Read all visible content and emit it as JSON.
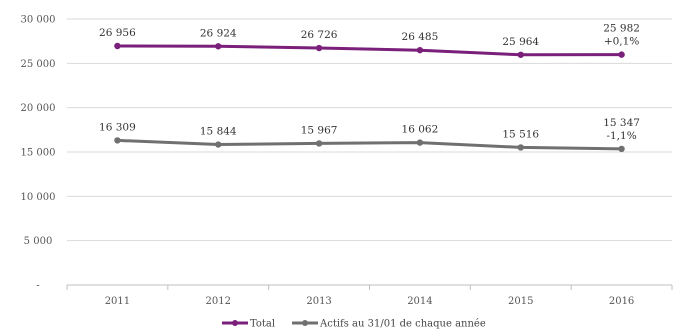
{
  "chart_data": {
    "type": "line",
    "categories": [
      "2011",
      "2012",
      "2013",
      "2014",
      "2015",
      "2016"
    ],
    "ylim": [
      0,
      30000
    ],
    "yticks": [
      0,
      5000,
      10000,
      15000,
      20000,
      25000,
      30000
    ],
    "ytick_labels": [
      "-",
      "5 000",
      "10 000",
      "15 000",
      "20 000",
      "25 000",
      "30 000"
    ],
    "grid": true,
    "legend_position": "bottom",
    "series": [
      {
        "name": "Total",
        "color": "#7a1f7a",
        "values": [
          26956,
          26924,
          26726,
          26485,
          25964,
          25982
        ],
        "labels": [
          "26 956",
          "26 924",
          "26 726",
          "26 485",
          "25 964",
          "25 982"
        ],
        "change_label": "+0,1%"
      },
      {
        "name": "Actifs au 31/01 de chaque année",
        "color": "#707070",
        "values": [
          16309,
          15844,
          15967,
          16062,
          15516,
          15347
        ],
        "labels": [
          "16 309",
          "15 844",
          "15 967",
          "16 062",
          "15 516",
          "15 347"
        ],
        "change_label": "-1,1%"
      }
    ]
  }
}
